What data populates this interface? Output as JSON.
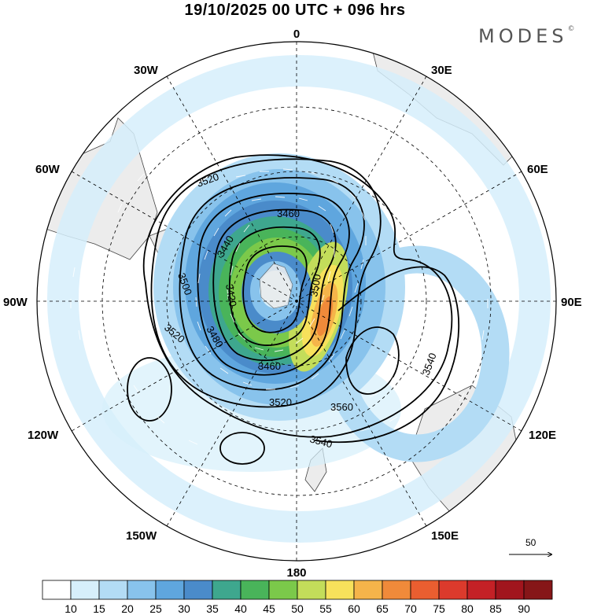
{
  "title": "19/10/2025  00 UTC  + 096 hrs",
  "logo": "MODES",
  "logo_mark": "©",
  "longitude_labels": {
    "top": "0",
    "bottom": "180",
    "left": "90W",
    "right": "90E",
    "upper_left_1": "30W",
    "upper_left_2": "60W",
    "upper_right_1": "30E",
    "upper_right_2": "60E",
    "lower_left_1": "120W",
    "lower_left_2": "150W",
    "lower_right_1": "120E",
    "lower_right_2": "150E"
  },
  "contour_labels": [
    "3520",
    "3460",
    "3440",
    "3500",
    "3420",
    "3520",
    "3480",
    "3460",
    "3500",
    "3520",
    "3540",
    "3560",
    "3540"
  ],
  "reference_vector": {
    "label": "50"
  },
  "colorbar": {
    "colors": [
      "#ffffff",
      "#d6effb",
      "#b3dcf5",
      "#88c3ec",
      "#5fa6de",
      "#4a8bca",
      "#3ea78e",
      "#49b45a",
      "#7bc94a",
      "#c3dd5a",
      "#f7e15b",
      "#f5b44a",
      "#f08a3a",
      "#ea5e30",
      "#dc3a2c",
      "#c42126",
      "#a1151d",
      "#861618"
    ],
    "labels": [
      "10",
      "15",
      "20",
      "25",
      "30",
      "35",
      "40",
      "45",
      "50",
      "55",
      "60",
      "65",
      "70",
      "75",
      "80",
      "85",
      "90"
    ]
  }
}
